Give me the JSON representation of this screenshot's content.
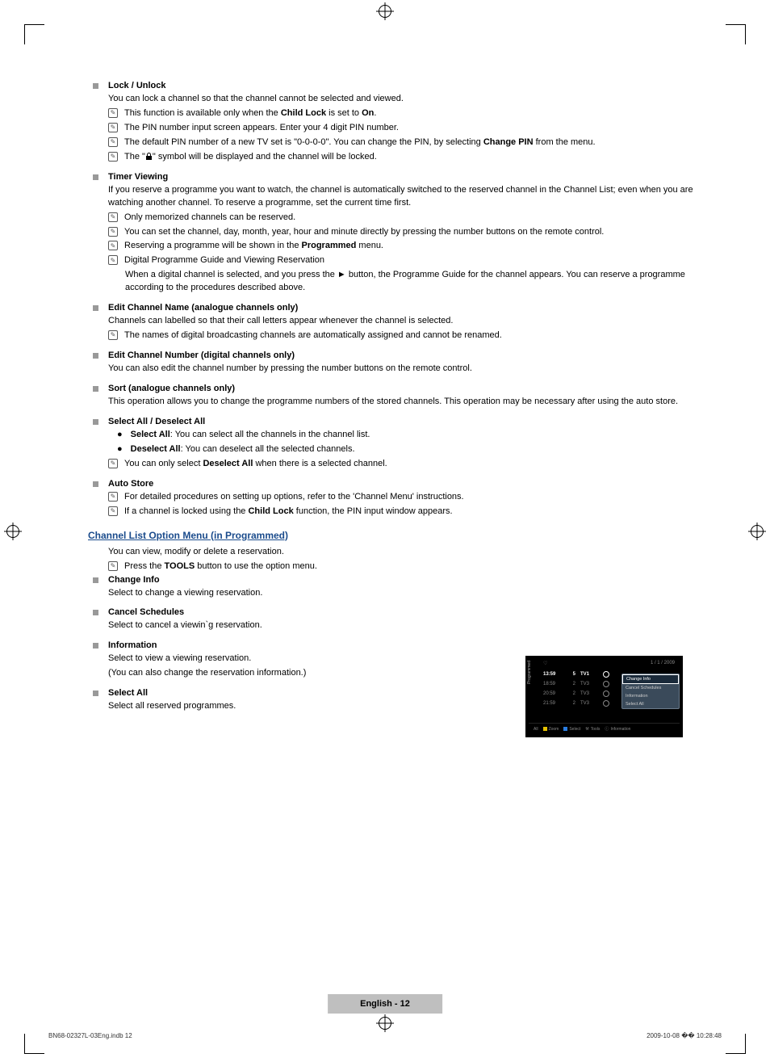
{
  "crop_marks": true,
  "sections": [
    {
      "title": "Lock / Unlock",
      "body": [
        "You can lock a channel so that the channel cannot be selected and viewed."
      ],
      "notes": [
        {
          "html": "This function is available only when the <b>Child Lock</b> is set to <b>On</b>."
        },
        {
          "text": "The PIN number input screen appears. Enter your 4 digit PIN number."
        },
        {
          "html": "The default PIN number of a new TV set is \"0-0-0-0\". You can change the PIN, by selecting <b>Change PIN</b> from the menu."
        },
        {
          "html": "The \"<span class='lock-icon'></span>\" symbol will be displayed and the channel will be locked."
        }
      ]
    },
    {
      "title": "Timer Viewing",
      "body": [
        "If you reserve a programme you want to watch, the channel is automatically switched to the reserved channel in the Channel List; even when you are watching another channel. To reserve a programme, set the current time first."
      ],
      "notes": [
        {
          "text": "Only memorized channels can be reserved."
        },
        {
          "text": "You can set the channel, day, month, year, hour and minute directly by pressing the number buttons on the remote control."
        },
        {
          "html": "Reserving a programme will be shown in the <b>Programmed</b> menu."
        },
        {
          "text": "Digital Programme Guide and Viewing Reservation",
          "sub": [
            "When a digital channel is selected, and you press the ► button, the Programme Guide for the channel appears. You can reserve a programme according to the procedures described above."
          ]
        }
      ]
    },
    {
      "title": "Edit Channel Name (analogue channels only)",
      "body": [
        "Channels can labelled so that their call letters appear whenever the channel is selected."
      ],
      "notes": [
        {
          "text": "The names of digital broadcasting channels are automatically assigned and cannot be renamed."
        }
      ]
    },
    {
      "title": "Edit Channel Number (digital channels only)",
      "body": [
        "You can also edit the channel number by pressing the number buttons on the remote control."
      ]
    },
    {
      "title": "Sort (analogue channels only)",
      "body": [
        "This operation allows you to change the programme numbers of the stored channels. This operation may be necessary after using the auto store."
      ]
    },
    {
      "title": "Select All / Deselect All",
      "dots": [
        {
          "html": "<b>Select All</b>: You can select all the channels in the channel list."
        },
        {
          "html": "<b>Deselect All</b>: You can deselect all the selected channels."
        }
      ],
      "notes": [
        {
          "html": "You can only select <b>Deselect All</b> when there is a selected channel."
        }
      ]
    },
    {
      "title": "Auto Store",
      "notes": [
        {
          "text": "For detailed procedures on setting up options, refer to the 'Channel Menu' instructions."
        },
        {
          "html": "If a channel is locked using the <b>Child Lock</b> function, the PIN input window appears."
        }
      ]
    }
  ],
  "heading2": "Channel List Option Menu (in Programmed)",
  "post_heading_body": [
    "You can view, modify or delete a reservation."
  ],
  "post_heading_notes": [
    {
      "html": "Press the <b>TOOLS</b> button to use the option menu."
    }
  ],
  "sections2": [
    {
      "title": "Change Info",
      "body": [
        "Select to change a viewing reservation."
      ]
    },
    {
      "title": "Cancel Schedules",
      "body": [
        "Select to cancel a viewin`g reservation."
      ]
    },
    {
      "title": "Information",
      "body": [
        "Select to view a viewing reservation.",
        "(You can also change the reservation information.)"
      ]
    },
    {
      "title": "Select All",
      "body": [
        "Select all reserved programmes."
      ]
    }
  ],
  "tv": {
    "side_label": "Programmed",
    "date": "1 / 1 / 2009",
    "rows": [
      {
        "time": "13:59",
        "ch": "5",
        "name": "TV1",
        "hl": true
      },
      {
        "time": "18:59",
        "ch": "2",
        "name": "TV3",
        "hl": false
      },
      {
        "time": "20:59",
        "ch": "2",
        "name": "TV3",
        "hl": false
      },
      {
        "time": "21:59",
        "ch": "2",
        "name": "TV3",
        "hl": false
      }
    ],
    "menu": [
      "Change Info",
      "Cancel Schedules",
      "Information",
      "Select All"
    ],
    "menu_selected": 0,
    "bottom": [
      {
        "label": "All"
      },
      {
        "color": "#e6c200",
        "label": "Zoom"
      },
      {
        "color": "#2a7de1",
        "label": "Select"
      },
      {
        "icon": "tools",
        "label": "Tools"
      },
      {
        "icon": "info",
        "label": "Information"
      }
    ]
  },
  "footer_page": "English - 12",
  "footer_left": "BN68-02327L-03Eng.indb   12",
  "footer_right": "2009-10-08   �� 10:28:48"
}
